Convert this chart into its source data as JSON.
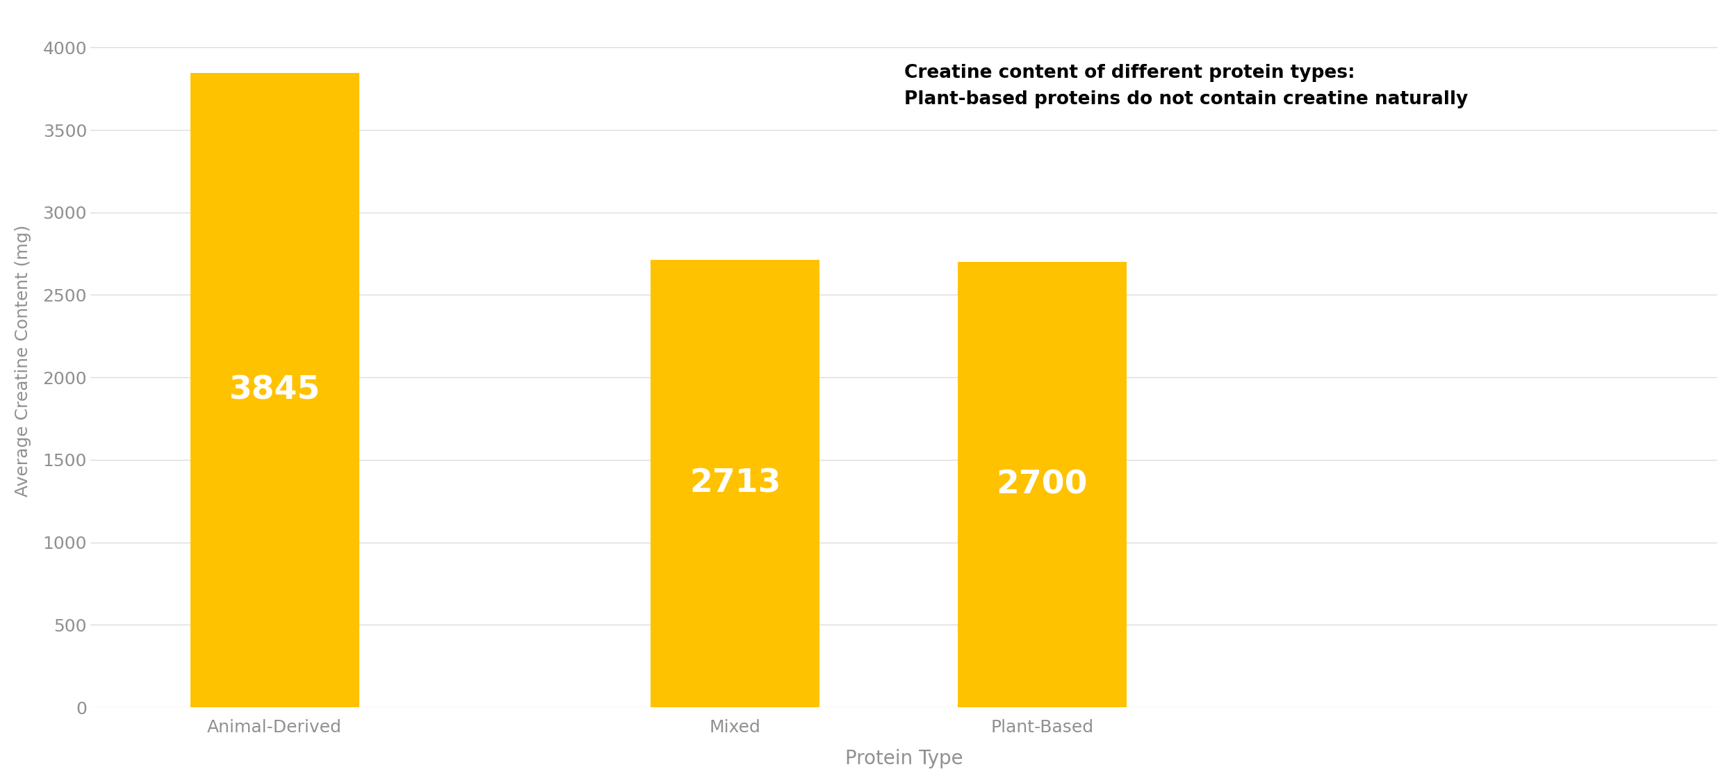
{
  "xtick_labels": [
    "Animal-Derived",
    "Mixed",
    "Plant-Based"
  ],
  "xlabel": "Protein Type",
  "ylabel": "Average Creatine Content (mg)",
  "values": [
    3845,
    2713,
    2700
  ],
  "bar_positions": [
    0,
    1.5,
    2.5
  ],
  "bar_color": "#FFC200",
  "label_color": "#FFFFFF",
  "bar_label_fontsize": 34,
  "yticks": [
    0,
    500,
    1000,
    1500,
    2000,
    2500,
    3000,
    3500,
    4000
  ],
  "ylim": [
    0,
    4200
  ],
  "annotation_title": "Creatine content of different protein types:",
  "annotation_body": "Plant-based proteins do not contain creatine naturally",
  "annotation_fontsize": 19,
  "xlabel_fontsize": 20,
  "ylabel_fontsize": 18,
  "tick_fontsize": 18,
  "background_color": "#FFFFFF",
  "grid_color": "#DCDCDC",
  "tick_label_color": "#909090",
  "bar_width": 0.55
}
